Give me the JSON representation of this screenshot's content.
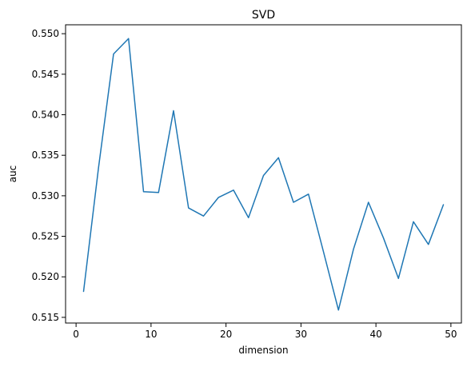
{
  "chart_data": {
    "type": "line",
    "title": "SVD",
    "xlabel": "dimension",
    "ylabel": "auc",
    "xlim": [
      -1.4,
      51.4
    ],
    "ylim": [
      0.5143,
      0.5511
    ],
    "xticks": [
      0,
      10,
      20,
      30,
      40,
      50
    ],
    "xtick_labels": [
      "0",
      "10",
      "20",
      "30",
      "40",
      "50"
    ],
    "yticks": [
      0.515,
      0.52,
      0.525,
      0.53,
      0.535,
      0.54,
      0.545,
      0.55
    ],
    "ytick_labels": [
      "0.515",
      "0.520",
      "0.525",
      "0.530",
      "0.535",
      "0.540",
      "0.545",
      "0.550"
    ],
    "grid": false,
    "series": [
      {
        "color": "#1f77b4",
        "x": [
          1,
          3,
          5,
          7,
          9,
          11,
          13,
          15,
          17,
          19,
          21,
          23,
          25,
          27,
          29,
          31,
          33,
          35,
          37,
          39,
          41,
          43,
          45,
          47,
          49
        ],
        "y": [
          0.5182,
          0.5335,
          0.5475,
          0.5494,
          0.5305,
          0.5304,
          0.5405,
          0.5285,
          0.5275,
          0.5298,
          0.5307,
          0.5273,
          0.5325,
          0.5347,
          0.5292,
          0.5302,
          0.5231,
          0.5159,
          0.5234,
          0.5292,
          0.5248,
          0.5198,
          0.5268,
          0.524,
          0.5289
        ]
      }
    ]
  }
}
